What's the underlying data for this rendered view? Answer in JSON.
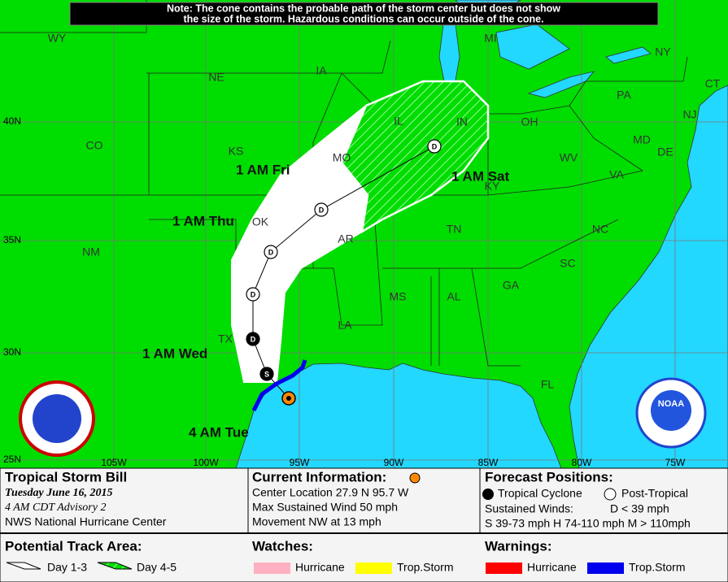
{
  "header": {
    "note": [
      "Note: The cone contains the probable path of the storm center but does not show",
      "the size of the storm. Hazardous conditions can occur outside of the cone."
    ]
  },
  "map": {
    "states": [
      "WY",
      "NE",
      "IA",
      "MI",
      "NY",
      "CT",
      "NJ",
      "PA",
      "OH",
      "IN",
      "IL",
      "CO",
      "KS",
      "MO",
      "WV",
      "MD",
      "DE",
      "VA",
      "KY",
      "OK",
      "AR",
      "TN",
      "NC",
      "NM",
      "SC",
      "MS",
      "AL",
      "GA",
      "TX",
      "LA",
      "FL"
    ],
    "lat_labels": [
      "40N",
      "35N",
      "30N",
      "25N"
    ],
    "lon_labels": [
      "105W",
      "100W",
      "95W",
      "90W",
      "85W",
      "80W",
      "75W"
    ],
    "time_labels": [
      "1 AM Fri",
      "1 AM Sat",
      "1 AM Thu",
      "1 AM Wed",
      "4 AM Tue"
    ],
    "points": [
      "D",
      "D",
      "D",
      "D",
      "D",
      "S"
    ],
    "logo": "NOAA"
  },
  "panel": {
    "storm": {
      "name": "Tropical Storm Bill",
      "date": "Tuesday  June 16, 2015",
      "advisory": "4 AM CDT Advisory 2",
      "center": "NWS National Hurricane Center"
    },
    "current": {
      "title": "Current Information:",
      "location": "Center Location 27.9 N  95.7 W",
      "wind": "Max Sustained Wind  50 mph",
      "movement": "Movement NW at  13 mph"
    },
    "forecast": {
      "title": "Forecast Positions:",
      "tropical": "Tropical Cyclone",
      "post": "Post-Tropical",
      "winds": "Sustained Winds:",
      "d": "D  < 39 mph",
      "scale": "S  39-73 mph  H  74-110 mph  M  > 110mph"
    },
    "track": {
      "title": "Potential Track Area:",
      "day13": "Day 1-3",
      "day45": "Day 4-5"
    },
    "watches": {
      "title": "Watches:",
      "hurricane": "Hurricane",
      "storm": "Trop.Storm"
    },
    "warnings": {
      "title": "Warnings:",
      "hurricane": "Hurricane",
      "storm": "Trop.Storm"
    }
  }
}
